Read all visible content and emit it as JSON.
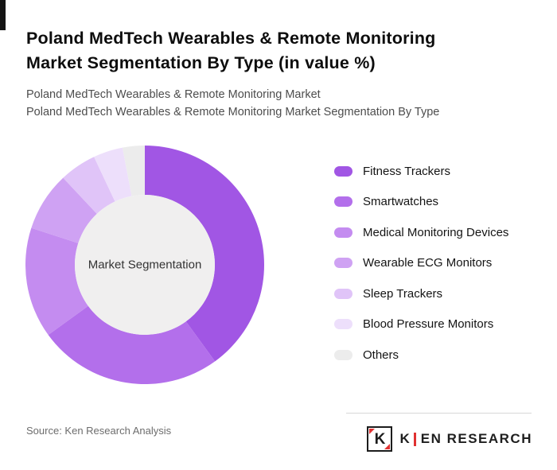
{
  "header": {
    "title": "Poland MedTech Wearables & Remote Monitoring Market Segmentation By Type (in value %)",
    "subtitle_line1": "Poland MedTech Wearables & Remote Monitoring Market",
    "subtitle_line2": "Poland MedTech Wearables & Remote Monitoring Market Segmentation By Type"
  },
  "chart_data": {
    "type": "pie",
    "donut": true,
    "start_angle_deg": 0,
    "direction": "clockwise",
    "center_label": "Market Segmentation",
    "categories": [
      "Fitness Trackers",
      "Smartwatches",
      "Medical Monitoring Devices",
      "Wearable ECG Monitors",
      "Sleep Trackers",
      "Blood Pressure Monitors",
      "Others"
    ],
    "values": [
      40,
      25,
      15,
      8,
      5,
      4,
      3
    ],
    "colors": [
      "#a156e4",
      "#b36feb",
      "#c48cf0",
      "#cfa2f3",
      "#e0c4f8",
      "#eddffb",
      "#ececec"
    ],
    "hole_color": "#f0efef",
    "legend_position": "right",
    "title": "Poland MedTech Wearables & Remote Monitoring Market Segmentation By Type (in value %)"
  },
  "footer": {
    "source": "Source: Ken Research Analysis",
    "logo_letter": "K",
    "logo_text_part1": "K",
    "logo_text_part2": "EN RESEARCH"
  }
}
